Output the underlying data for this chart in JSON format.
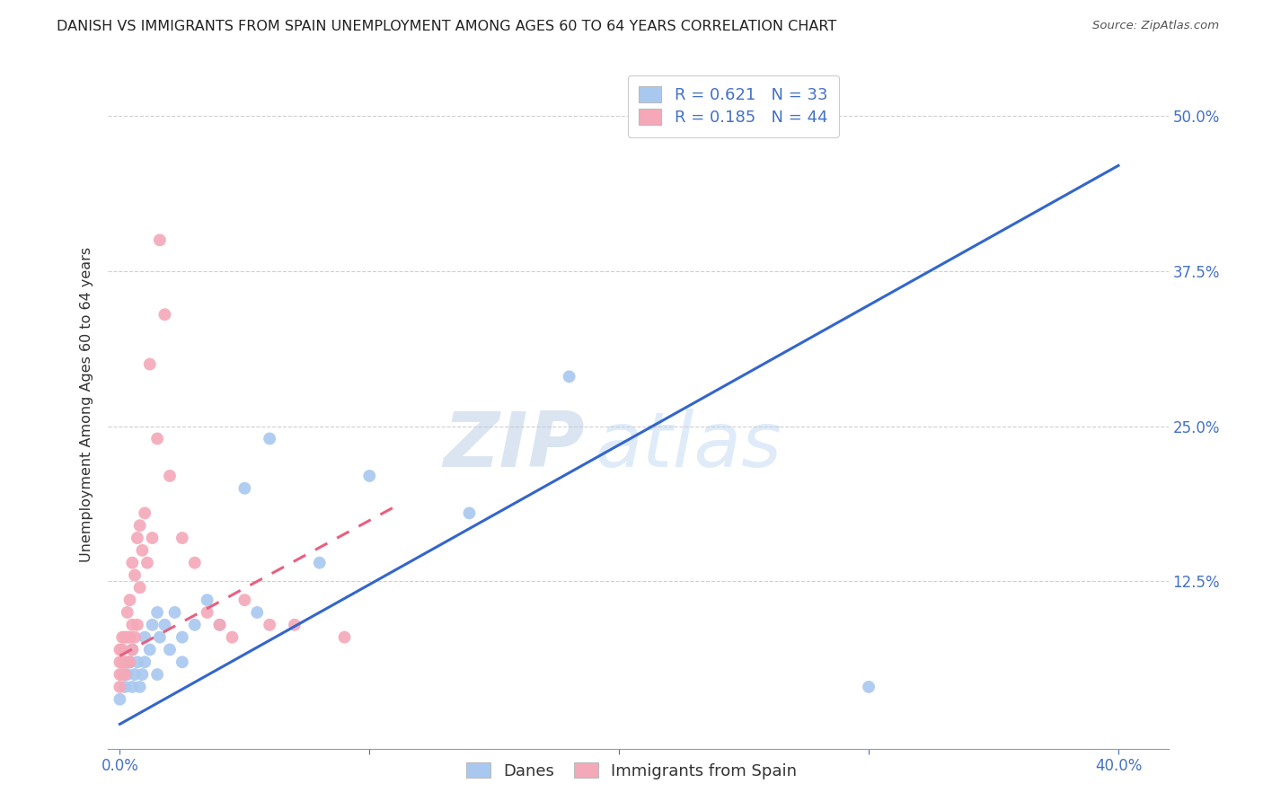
{
  "title": "DANISH VS IMMIGRANTS FROM SPAIN UNEMPLOYMENT AMONG AGES 60 TO 64 YEARS CORRELATION CHART",
  "source": "Source: ZipAtlas.com",
  "tick_color": "#4472C4",
  "ylabel": "Unemployment Among Ages 60 to 64 years",
  "x_tick_labels": [
    "0.0%",
    "",
    "",
    "",
    "40.0%"
  ],
  "x_tick_values": [
    0.0,
    0.1,
    0.2,
    0.3,
    0.4
  ],
  "y_tick_labels": [
    "12.5%",
    "25.0%",
    "37.5%",
    "50.0%"
  ],
  "y_tick_values": [
    0.125,
    0.25,
    0.375,
    0.5
  ],
  "xlim": [
    -0.005,
    0.42
  ],
  "ylim": [
    -0.01,
    0.545
  ],
  "danes_R": 0.621,
  "danes_N": 33,
  "spain_R": 0.185,
  "spain_N": 44,
  "danes_color": "#a8c8f0",
  "spain_color": "#f4a8b8",
  "danes_line_color": "#3366cc",
  "spain_line_color": "#e86080",
  "danes_scatter_x": [
    0.0,
    0.002,
    0.003,
    0.004,
    0.005,
    0.005,
    0.006,
    0.007,
    0.008,
    0.009,
    0.01,
    0.01,
    0.012,
    0.013,
    0.015,
    0.015,
    0.016,
    0.018,
    0.02,
    0.022,
    0.025,
    0.025,
    0.03,
    0.035,
    0.04,
    0.05,
    0.055,
    0.06,
    0.08,
    0.1,
    0.14,
    0.18,
    0.3
  ],
  "danes_scatter_y": [
    0.03,
    0.04,
    0.05,
    0.06,
    0.04,
    0.07,
    0.05,
    0.06,
    0.04,
    0.05,
    0.06,
    0.08,
    0.07,
    0.09,
    0.05,
    0.1,
    0.08,
    0.09,
    0.07,
    0.1,
    0.06,
    0.08,
    0.09,
    0.11,
    0.09,
    0.2,
    0.1,
    0.24,
    0.14,
    0.21,
    0.18,
    0.29,
    0.04
  ],
  "spain_scatter_x": [
    0.0,
    0.0,
    0.0,
    0.0,
    0.001,
    0.001,
    0.001,
    0.001,
    0.002,
    0.002,
    0.002,
    0.003,
    0.003,
    0.003,
    0.004,
    0.004,
    0.004,
    0.005,
    0.005,
    0.005,
    0.006,
    0.006,
    0.007,
    0.007,
    0.008,
    0.008,
    0.009,
    0.01,
    0.011,
    0.012,
    0.013,
    0.015,
    0.016,
    0.018,
    0.02,
    0.025,
    0.03,
    0.035,
    0.04,
    0.045,
    0.05,
    0.06,
    0.07,
    0.09
  ],
  "spain_scatter_y": [
    0.04,
    0.05,
    0.06,
    0.07,
    0.05,
    0.06,
    0.07,
    0.08,
    0.05,
    0.06,
    0.08,
    0.06,
    0.08,
    0.1,
    0.06,
    0.08,
    0.11,
    0.07,
    0.09,
    0.14,
    0.08,
    0.13,
    0.09,
    0.16,
    0.12,
    0.17,
    0.15,
    0.18,
    0.14,
    0.3,
    0.16,
    0.24,
    0.4,
    0.34,
    0.21,
    0.16,
    0.14,
    0.1,
    0.09,
    0.08,
    0.11,
    0.09,
    0.09,
    0.08
  ],
  "danes_line_x": [
    0.0,
    0.4
  ],
  "danes_line_y": [
    0.01,
    0.46
  ],
  "spain_line_x": [
    0.0,
    0.11
  ],
  "spain_line_y": [
    0.065,
    0.185
  ],
  "watermark_zip": "ZIP",
  "watermark_atlas": "atlas",
  "background_color": "#ffffff",
  "grid_color": "#d0d0d0",
  "title_color": "#222222",
  "title_fontsize": 11.5,
  "bottom_legend1": "Danes",
  "bottom_legend2": "Immigrants from Spain"
}
